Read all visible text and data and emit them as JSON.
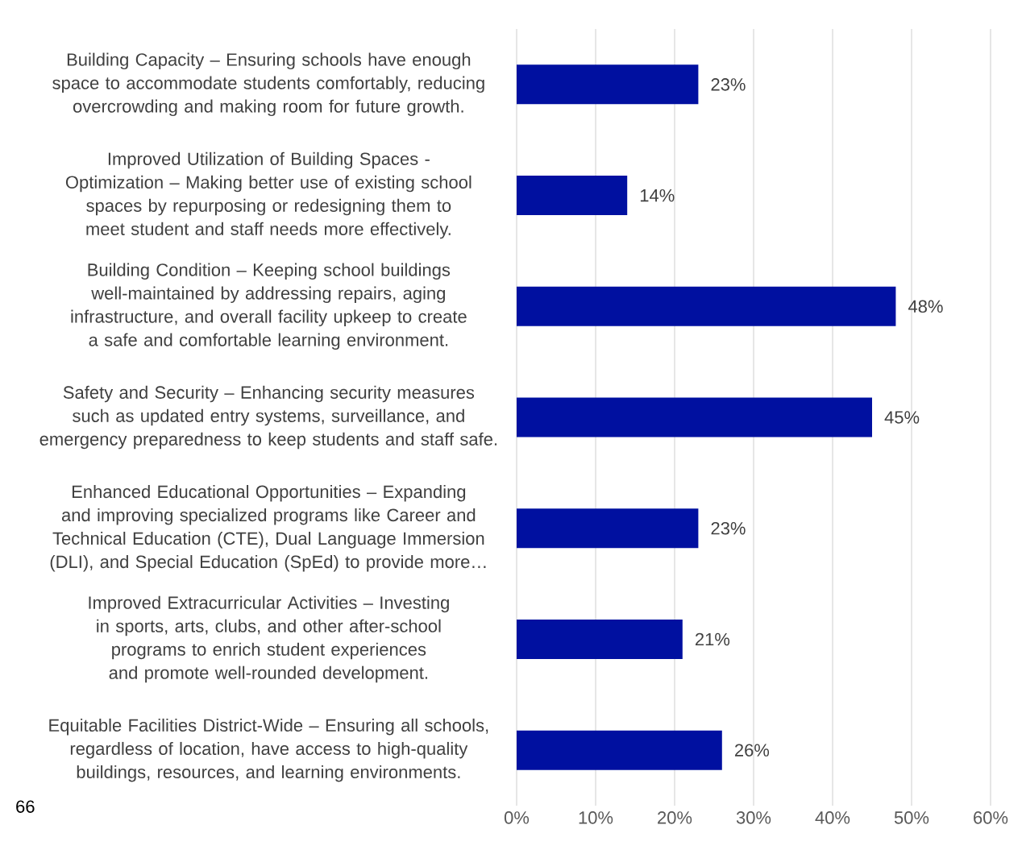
{
  "chart_data": {
    "type": "bar",
    "orientation": "horizontal",
    "categories": [
      "Building Capacity – Ensuring schools have enough space to accommodate students comfortably, reducing overcrowding and making room for future growth.",
      "Improved Utilization of Building Spaces - Optimization – Making better use of existing school spaces by repurposing or redesigning them to meet student and staff needs more effectively.",
      "Building Condition – Keeping school buildings well-maintained by addressing repairs, aging infrastructure, and overall facility upkeep to create a safe and comfortable learning environment.",
      "Safety and Security – Enhancing security measures such as updated entry systems, surveillance, and emergency preparedness to keep students and staff safe.",
      "Enhanced Educational Opportunities – Expanding and improving specialized programs like Career and Technical Education (CTE), Dual Language Immersion (DLI), and Special Education (SpEd) to provide more…",
      "Improved Extracurricular Activities – Investing in sports, arts, clubs, and other after-school programs to enrich student experiences and promote well-rounded development.",
      "Equitable Facilities District-Wide – Ensuring all schools, regardless of location, have access to high-quality buildings, resources, and learning environments."
    ],
    "values": [
      23,
      14,
      48,
      45,
      23,
      21,
      26
    ],
    "value_labels": [
      "23%",
      "14%",
      "48%",
      "45%",
      "23%",
      "21%",
      "26%"
    ],
    "color": "#0010a0",
    "xlim": [
      0,
      60
    ],
    "xticks": [
      {
        "value": 0,
        "label": "0%"
      },
      {
        "value": 10,
        "label": "10%"
      },
      {
        "value": 20,
        "label": "20%"
      },
      {
        "value": 30,
        "label": "30%"
      },
      {
        "value": 40,
        "label": "40%"
      },
      {
        "value": 50,
        "label": "50%"
      },
      {
        "value": 60,
        "label": "60%"
      }
    ],
    "grid": "x",
    "annotations": [
      "66"
    ]
  }
}
